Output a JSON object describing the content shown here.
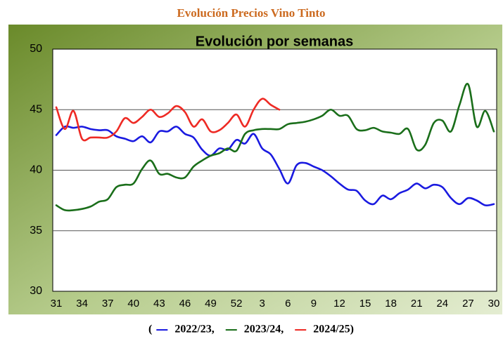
{
  "chart_data": {
    "type": "line",
    "header": "Evolución Precios Vino Tinto",
    "title": "Evolución por semanas",
    "categories": [
      "31",
      null,
      null,
      "34",
      null,
      null,
      "37",
      null,
      null,
      "40",
      null,
      null,
      "43",
      null,
      null,
      "46",
      null,
      null,
      "49",
      null,
      null,
      "52",
      null,
      null,
      "3",
      null,
      null,
      "6",
      null,
      null,
      "9",
      null,
      null,
      "12",
      null,
      null,
      "15",
      null,
      null,
      "18",
      null,
      null,
      "21",
      null,
      null,
      "24",
      null,
      null,
      "27",
      null,
      null,
      "30"
    ],
    "ylim": [
      30,
      50
    ],
    "yticks": [
      30,
      35,
      40,
      45,
      50
    ],
    "grid": true,
    "legend_open": "(",
    "legend_separator": ",",
    "legend_close": ")",
    "series": [
      {
        "name": "2022/23",
        "color": "#1a1ae0",
        "values": [
          42.9,
          43.6,
          43.5,
          43.6,
          43.4,
          43.3,
          43.3,
          42.8,
          42.6,
          42.4,
          42.8,
          42.3,
          43.2,
          43.2,
          43.6,
          43.0,
          42.7,
          41.7,
          41.2,
          41.8,
          41.7,
          42.5,
          42.2,
          43.0,
          41.8,
          41.3,
          40.1,
          38.9,
          40.4,
          40.6,
          40.3,
          40.0,
          39.5,
          38.9,
          38.4,
          38.3,
          37.5,
          37.2,
          37.9,
          37.6,
          38.1,
          38.4,
          38.9,
          38.5,
          38.8,
          38.6,
          37.7,
          37.2,
          37.7,
          37.5,
          37.1,
          37.2
        ]
      },
      {
        "name": "2023/24",
        "color": "#1a6e1a",
        "values": [
          37.1,
          36.7,
          36.7,
          36.8,
          37.0,
          37.4,
          37.6,
          38.6,
          38.8,
          38.9,
          40.1,
          40.8,
          39.7,
          39.7,
          39.4,
          39.4,
          40.3,
          40.8,
          41.2,
          41.4,
          41.8,
          41.6,
          43.0,
          43.3,
          43.4,
          43.4,
          43.4,
          43.8,
          43.9,
          44.0,
          44.2,
          44.5,
          45.0,
          44.5,
          44.5,
          43.4,
          43.3,
          43.5,
          43.2,
          43.1,
          43.0,
          43.4,
          41.7,
          42.1,
          43.9,
          44.1,
          43.2,
          45.4,
          47.1,
          43.6,
          44.9,
          43.2
        ]
      },
      {
        "name": "2024/25",
        "color": "#ee2a24",
        "values": [
          45.2,
          43.4,
          44.9,
          42.6,
          42.7,
          42.7,
          42.7,
          43.2,
          44.3,
          43.9,
          44.4,
          45.0,
          44.4,
          44.7,
          45.3,
          44.8,
          43.6,
          44.2,
          43.2,
          43.3,
          43.9,
          44.6,
          43.6,
          45.0,
          45.9,
          45.4,
          45.0,
          null,
          null,
          null,
          null,
          null,
          null,
          null,
          null,
          null,
          null,
          null,
          null,
          null,
          null,
          null,
          null,
          null,
          null,
          null,
          null,
          null,
          null,
          null,
          null,
          null
        ]
      }
    ]
  }
}
